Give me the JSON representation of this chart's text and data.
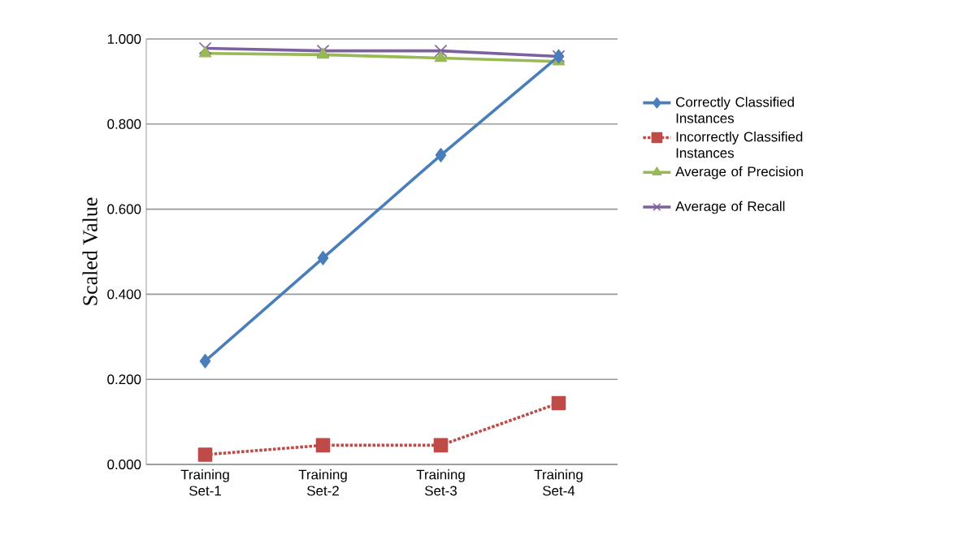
{
  "chart_data": {
    "type": "line",
    "ylabel": "Scaled Value",
    "categories": [
      "Training Set-1",
      "Training Set-2",
      "Training Set-3",
      "Training Set-4"
    ],
    "series": [
      {
        "name": "Correctly Classified Instances",
        "color": "#4a7ebb",
        "marker": "diamond",
        "line_style": "solid",
        "values": [
          0.243,
          0.485,
          0.727,
          0.959
        ]
      },
      {
        "name": "Incorrectly Classified Instances",
        "color": "#be4b48",
        "marker": "square",
        "line_style": "dotted",
        "values": [
          0.023,
          0.045,
          0.045,
          0.144
        ]
      },
      {
        "name": "Average of Precision",
        "color": "#98b954",
        "marker": "triangle",
        "line_style": "solid",
        "values": [
          0.966,
          0.963,
          0.955,
          0.947
        ]
      },
      {
        "name": "Average of Recall",
        "color": "#7d60a0",
        "marker": "cross",
        "line_style": "solid",
        "values": [
          0.978,
          0.972,
          0.972,
          0.959
        ]
      }
    ],
    "ylim": [
      0,
      1
    ],
    "yticks": [
      {
        "value": 0,
        "label": "0.000"
      },
      {
        "value": 0.2,
        "label": "0.200"
      },
      {
        "value": 0.4,
        "label": "0.400"
      },
      {
        "value": 0.6,
        "label": "0.600"
      },
      {
        "value": 0.8,
        "label": "0.800"
      },
      {
        "value": 1,
        "label": "1.000"
      }
    ],
    "grid": "y",
    "legend": "right"
  }
}
